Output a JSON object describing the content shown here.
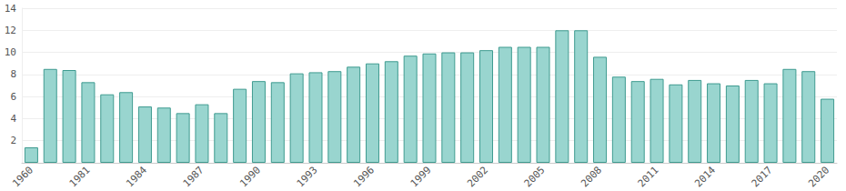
{
  "chart_data": {
    "type": "bar",
    "categories": [
      "1960",
      null,
      null,
      "1981",
      null,
      null,
      "1984",
      null,
      null,
      "1987",
      null,
      null,
      "1990",
      null,
      null,
      "1993",
      null,
      null,
      "1996",
      null,
      null,
      "1999",
      null,
      null,
      "2002",
      null,
      null,
      "2005",
      null,
      null,
      "2008",
      null,
      null,
      "2011",
      null,
      null,
      "2014",
      null,
      null,
      "2017",
      null,
      null,
      "2020"
    ],
    "values": [
      1.4,
      8.5,
      8.4,
      7.3,
      6.2,
      6.4,
      5.1,
      5.0,
      4.5,
      5.3,
      4.5,
      6.7,
      7.4,
      7.3,
      8.1,
      8.2,
      8.3,
      8.7,
      9.0,
      9.2,
      9.7,
      9.9,
      10.0,
      10.0,
      10.2,
      10.5,
      10.5,
      10.5,
      12.0,
      12.0,
      9.6,
      7.8,
      7.4,
      7.6,
      7.1,
      7.5,
      7.2,
      7.0,
      7.5,
      7.2,
      8.5,
      8.3,
      5.8
    ],
    "color": "#99d5cf",
    "ylim": [
      0,
      14
    ],
    "yticks": [
      2,
      4,
      6,
      8,
      10,
      12,
      14
    ],
    "grid": true
  }
}
